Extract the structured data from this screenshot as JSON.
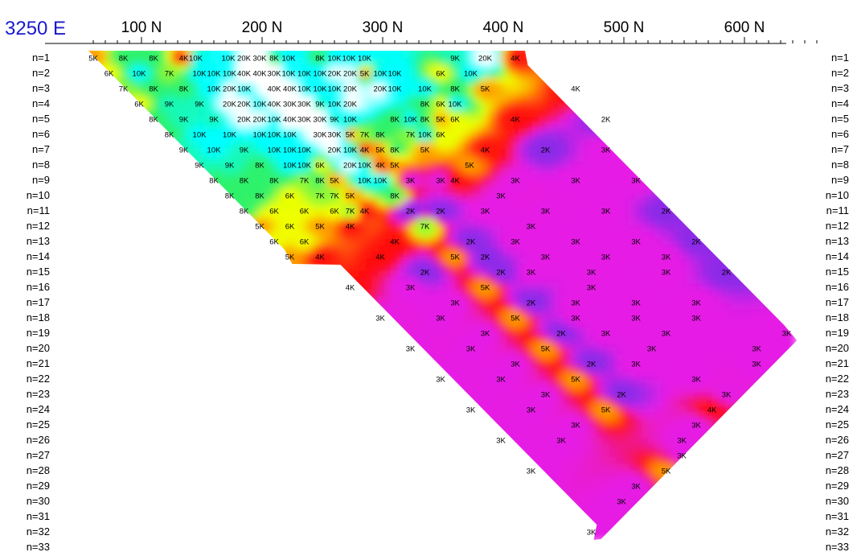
{
  "chart_data": {
    "type": "heatmap",
    "line_label": "3250 E",
    "line_label_color": "#1a1acc",
    "x_ticks": [
      "100 N",
      "200 N",
      "300 N",
      "400 N",
      "500 N",
      "600 N"
    ],
    "x_tick_values": [
      100,
      200,
      300,
      400,
      500,
      600
    ],
    "n_levels": [
      "n=1",
      "n=2",
      "n=3",
      "n=4",
      "n=5",
      "n=6",
      "n=7",
      "n=8",
      "n=9",
      "n=10",
      "n=11",
      "n=12",
      "n=13",
      "n=14",
      "n=15",
      "n=16",
      "n=17",
      "n=18",
      "n=19",
      "n=20",
      "n=21",
      "n=22",
      "n=23",
      "n=24",
      "n=25",
      "n=26",
      "n=27",
      "n=28",
      "n=29",
      "n=30",
      "n=31",
      "n=32",
      "n=33"
    ],
    "colorscale": [
      {
        "value": 2000,
        "color": "#8a2be8"
      },
      {
        "value": 3000,
        "color": "#e61ee6"
      },
      {
        "value": 4000,
        "color": "#ff1010"
      },
      {
        "value": 5000,
        "color": "#ff9a00"
      },
      {
        "value": 6000,
        "color": "#f0ff00"
      },
      {
        "value": 8000,
        "color": "#2ef26a"
      },
      {
        "value": 10000,
        "color": "#00ffff"
      },
      {
        "value": 20000,
        "color": "#ffffff"
      }
    ],
    "data_labels": [
      {
        "n": 1,
        "x": 60,
        "t": "5K"
      },
      {
        "n": 1,
        "x": 85,
        "t": "8K"
      },
      {
        "n": 1,
        "x": 110,
        "t": "8K"
      },
      {
        "n": 1,
        "x": 135,
        "t": "4K"
      },
      {
        "n": 1,
        "x": 145,
        "t": "10K"
      },
      {
        "n": 1,
        "x": 172,
        "t": "10K"
      },
      {
        "n": 1,
        "x": 185,
        "t": "20K"
      },
      {
        "n": 1,
        "x": 198,
        "t": "30K"
      },
      {
        "n": 1,
        "x": 210,
        "t": "8K"
      },
      {
        "n": 1,
        "x": 222,
        "t": "10K"
      },
      {
        "n": 1,
        "x": 248,
        "t": "8K"
      },
      {
        "n": 1,
        "x": 260,
        "t": "10K"
      },
      {
        "n": 1,
        "x": 272,
        "t": "10K"
      },
      {
        "n": 1,
        "x": 285,
        "t": "10K"
      },
      {
        "n": 1,
        "x": 360,
        "t": "9K"
      },
      {
        "n": 1,
        "x": 385,
        "t": "20K"
      },
      {
        "n": 1,
        "x": 410,
        "t": "4K"
      },
      {
        "n": 2,
        "x": 73,
        "t": "6K"
      },
      {
        "n": 2,
        "x": 98,
        "t": "10K"
      },
      {
        "n": 2,
        "x": 123,
        "t": "7K"
      },
      {
        "n": 2,
        "x": 148,
        "t": "10K"
      },
      {
        "n": 2,
        "x": 160,
        "t": "10K"
      },
      {
        "n": 2,
        "x": 173,
        "t": "10K"
      },
      {
        "n": 2,
        "x": 185,
        "t": "40K"
      },
      {
        "n": 2,
        "x": 198,
        "t": "40K"
      },
      {
        "n": 2,
        "x": 210,
        "t": "30K"
      },
      {
        "n": 2,
        "x": 222,
        "t": "10K"
      },
      {
        "n": 2,
        "x": 235,
        "t": "10K"
      },
      {
        "n": 2,
        "x": 248,
        "t": "10K"
      },
      {
        "n": 2,
        "x": 260,
        "t": "20K"
      },
      {
        "n": 2,
        "x": 273,
        "t": "20K"
      },
      {
        "n": 2,
        "x": 285,
        "t": "5K"
      },
      {
        "n": 2,
        "x": 298,
        "t": "10K"
      },
      {
        "n": 2,
        "x": 310,
        "t": "10K"
      },
      {
        "n": 2,
        "x": 348,
        "t": "6K"
      },
      {
        "n": 2,
        "x": 373,
        "t": "10K"
      },
      {
        "n": 3,
        "x": 85,
        "t": "7K"
      },
      {
        "n": 3,
        "x": 110,
        "t": "8K"
      },
      {
        "n": 3,
        "x": 135,
        "t": "8K"
      },
      {
        "n": 3,
        "x": 160,
        "t": "10K"
      },
      {
        "n": 3,
        "x": 173,
        "t": "20K"
      },
      {
        "n": 3,
        "x": 185,
        "t": "10K"
      },
      {
        "n": 3,
        "x": 210,
        "t": "40K"
      },
      {
        "n": 3,
        "x": 223,
        "t": "40K"
      },
      {
        "n": 3,
        "x": 235,
        "t": "10K"
      },
      {
        "n": 3,
        "x": 248,
        "t": "10K"
      },
      {
        "n": 3,
        "x": 260,
        "t": "10K"
      },
      {
        "n": 3,
        "x": 273,
        "t": "20K"
      },
      {
        "n": 3,
        "x": 298,
        "t": "20K"
      },
      {
        "n": 3,
        "x": 310,
        "t": "10K"
      },
      {
        "n": 3,
        "x": 335,
        "t": "10K"
      },
      {
        "n": 3,
        "x": 360,
        "t": "8K"
      },
      {
        "n": 3,
        "x": 385,
        "t": "5K"
      },
      {
        "n": 3,
        "x": 460,
        "t": "4K"
      },
      {
        "n": 4,
        "x": 98,
        "t": "6K"
      },
      {
        "n": 4,
        "x": 123,
        "t": "9K"
      },
      {
        "n": 4,
        "x": 148,
        "t": "9K"
      },
      {
        "n": 4,
        "x": 173,
        "t": "20K"
      },
      {
        "n": 4,
        "x": 185,
        "t": "20K"
      },
      {
        "n": 4,
        "x": 198,
        "t": "10K"
      },
      {
        "n": 4,
        "x": 210,
        "t": "40K"
      },
      {
        "n": 4,
        "x": 223,
        "t": "30K"
      },
      {
        "n": 4,
        "x": 235,
        "t": "30K"
      },
      {
        "n": 4,
        "x": 248,
        "t": "9K"
      },
      {
        "n": 4,
        "x": 260,
        "t": "10K"
      },
      {
        "n": 4,
        "x": 273,
        "t": "20K"
      },
      {
        "n": 4,
        "x": 335,
        "t": "8K"
      },
      {
        "n": 4,
        "x": 348,
        "t": "6K"
      },
      {
        "n": 4,
        "x": 360,
        "t": "10K"
      },
      {
        "n": 5,
        "x": 110,
        "t": "8K"
      },
      {
        "n": 5,
        "x": 135,
        "t": "9K"
      },
      {
        "n": 5,
        "x": 160,
        "t": "9K"
      },
      {
        "n": 5,
        "x": 185,
        "t": "20K"
      },
      {
        "n": 5,
        "x": 198,
        "t": "20K"
      },
      {
        "n": 5,
        "x": 210,
        "t": "10K"
      },
      {
        "n": 5,
        "x": 223,
        "t": "40K"
      },
      {
        "n": 5,
        "x": 235,
        "t": "30K"
      },
      {
        "n": 5,
        "x": 248,
        "t": "30K"
      },
      {
        "n": 5,
        "x": 260,
        "t": "9K"
      },
      {
        "n": 5,
        "x": 273,
        "t": "10K"
      },
      {
        "n": 5,
        "x": 310,
        "t": "8K"
      },
      {
        "n": 5,
        "x": 323,
        "t": "10K"
      },
      {
        "n": 5,
        "x": 335,
        "t": "8K"
      },
      {
        "n": 5,
        "x": 348,
        "t": "5K"
      },
      {
        "n": 5,
        "x": 360,
        "t": "6K"
      },
      {
        "n": 5,
        "x": 410,
        "t": "4K"
      },
      {
        "n": 5,
        "x": 485,
        "t": "2K"
      },
      {
        "n": 6,
        "x": 123,
        "t": "8K"
      },
      {
        "n": 6,
        "x": 148,
        "t": "10K"
      },
      {
        "n": 6,
        "x": 173,
        "t": "10K"
      },
      {
        "n": 6,
        "x": 198,
        "t": "10K"
      },
      {
        "n": 6,
        "x": 210,
        "t": "10K"
      },
      {
        "n": 6,
        "x": 223,
        "t": "10K"
      },
      {
        "n": 6,
        "x": 248,
        "t": "30K"
      },
      {
        "n": 6,
        "x": 260,
        "t": "30K"
      },
      {
        "n": 6,
        "x": 273,
        "t": "5K"
      },
      {
        "n": 6,
        "x": 285,
        "t": "7K"
      },
      {
        "n": 6,
        "x": 298,
        "t": "8K"
      },
      {
        "n": 6,
        "x": 323,
        "t": "7K"
      },
      {
        "n": 6,
        "x": 335,
        "t": "10K"
      },
      {
        "n": 6,
        "x": 348,
        "t": "6K"
      },
      {
        "n": 7,
        "x": 135,
        "t": "9K"
      },
      {
        "n": 7,
        "x": 160,
        "t": "10K"
      },
      {
        "n": 7,
        "x": 185,
        "t": "9K"
      },
      {
        "n": 7,
        "x": 210,
        "t": "10K"
      },
      {
        "n": 7,
        "x": 223,
        "t": "10K"
      },
      {
        "n": 7,
        "x": 235,
        "t": "10K"
      },
      {
        "n": 7,
        "x": 260,
        "t": "20K"
      },
      {
        "n": 7,
        "x": 273,
        "t": "10K"
      },
      {
        "n": 7,
        "x": 285,
        "t": "4K"
      },
      {
        "n": 7,
        "x": 298,
        "t": "5K"
      },
      {
        "n": 7,
        "x": 310,
        "t": "8K"
      },
      {
        "n": 7,
        "x": 335,
        "t": "5K"
      },
      {
        "n": 7,
        "x": 385,
        "t": "4K"
      },
      {
        "n": 7,
        "x": 435,
        "t": "2K"
      },
      {
        "n": 7,
        "x": 485,
        "t": "3K"
      },
      {
        "n": 8,
        "x": 148,
        "t": "9K"
      },
      {
        "n": 8,
        "x": 173,
        "t": "9K"
      },
      {
        "n": 8,
        "x": 198,
        "t": "8K"
      },
      {
        "n": 8,
        "x": 223,
        "t": "10K"
      },
      {
        "n": 8,
        "x": 235,
        "t": "10K"
      },
      {
        "n": 8,
        "x": 248,
        "t": "6K"
      },
      {
        "n": 8,
        "x": 273,
        "t": "20K"
      },
      {
        "n": 8,
        "x": 285,
        "t": "10K"
      },
      {
        "n": 8,
        "x": 298,
        "t": "4K"
      },
      {
        "n": 8,
        "x": 310,
        "t": "5K"
      },
      {
        "n": 8,
        "x": 372,
        "t": "5K"
      },
      {
        "n": 9,
        "x": 160,
        "t": "8K"
      },
      {
        "n": 9,
        "x": 185,
        "t": "8K"
      },
      {
        "n": 9,
        "x": 210,
        "t": "8K"
      },
      {
        "n": 9,
        "x": 235,
        "t": "7K"
      },
      {
        "n": 9,
        "x": 248,
        "t": "8K"
      },
      {
        "n": 9,
        "x": 260,
        "t": "5K"
      },
      {
        "n": 9,
        "x": 285,
        "t": "10K"
      },
      {
        "n": 9,
        "x": 298,
        "t": "10K"
      },
      {
        "n": 9,
        "x": 323,
        "t": "3K"
      },
      {
        "n": 9,
        "x": 348,
        "t": "3K"
      },
      {
        "n": 9,
        "x": 360,
        "t": "4K"
      },
      {
        "n": 9,
        "x": 410,
        "t": "3K"
      },
      {
        "n": 9,
        "x": 460,
        "t": "3K"
      },
      {
        "n": 9,
        "x": 510,
        "t": "3K"
      },
      {
        "n": 10,
        "x": 173,
        "t": "8K"
      },
      {
        "n": 10,
        "x": 198,
        "t": "8K"
      },
      {
        "n": 10,
        "x": 223,
        "t": "6K"
      },
      {
        "n": 10,
        "x": 248,
        "t": "7K"
      },
      {
        "n": 10,
        "x": 260,
        "t": "7K"
      },
      {
        "n": 10,
        "x": 273,
        "t": "5K"
      },
      {
        "n": 10,
        "x": 310,
        "t": "8K"
      },
      {
        "n": 10,
        "x": 398,
        "t": "3K"
      },
      {
        "n": 11,
        "x": 185,
        "t": "8K"
      },
      {
        "n": 11,
        "x": 210,
        "t": "6K"
      },
      {
        "n": 11,
        "x": 235,
        "t": "6K"
      },
      {
        "n": 11,
        "x": 260,
        "t": "6K"
      },
      {
        "n": 11,
        "x": 273,
        "t": "7K"
      },
      {
        "n": 11,
        "x": 285,
        "t": "4K"
      },
      {
        "n": 11,
        "x": 323,
        "t": "2K"
      },
      {
        "n": 11,
        "x": 348,
        "t": "2K"
      },
      {
        "n": 11,
        "x": 385,
        "t": "3K"
      },
      {
        "n": 11,
        "x": 435,
        "t": "3K"
      },
      {
        "n": 11,
        "x": 485,
        "t": "3K"
      },
      {
        "n": 11,
        "x": 535,
        "t": "2K"
      },
      {
        "n": 12,
        "x": 198,
        "t": "5K"
      },
      {
        "n": 12,
        "x": 223,
        "t": "6K"
      },
      {
        "n": 12,
        "x": 248,
        "t": "5K"
      },
      {
        "n": 12,
        "x": 273,
        "t": "4K"
      },
      {
        "n": 12,
        "x": 335,
        "t": "7K"
      },
      {
        "n": 12,
        "x": 423,
        "t": "3K"
      },
      {
        "n": 13,
        "x": 210,
        "t": "6K"
      },
      {
        "n": 13,
        "x": 235,
        "t": "6K"
      },
      {
        "n": 13,
        "x": 310,
        "t": "4K"
      },
      {
        "n": 13,
        "x": 373,
        "t": "2K"
      },
      {
        "n": 13,
        "x": 410,
        "t": "3K"
      },
      {
        "n": 13,
        "x": 460,
        "t": "3K"
      },
      {
        "n": 13,
        "x": 510,
        "t": "3K"
      },
      {
        "n": 13,
        "x": 560,
        "t": "2K"
      },
      {
        "n": 14,
        "x": 223,
        "t": "5K"
      },
      {
        "n": 14,
        "x": 248,
        "t": "4K"
      },
      {
        "n": 14,
        "x": 298,
        "t": "4K"
      },
      {
        "n": 14,
        "x": 360,
        "t": "5K"
      },
      {
        "n": 14,
        "x": 385,
        "t": "2K"
      },
      {
        "n": 14,
        "x": 435,
        "t": "3K"
      },
      {
        "n": 14,
        "x": 485,
        "t": "3K"
      },
      {
        "n": 14,
        "x": 535,
        "t": "3K"
      },
      {
        "n": 15,
        "x": 335,
        "t": "2K"
      },
      {
        "n": 15,
        "x": 398,
        "t": "2K"
      },
      {
        "n": 15,
        "x": 423,
        "t": "3K"
      },
      {
        "n": 15,
        "x": 473,
        "t": "3K"
      },
      {
        "n": 15,
        "x": 535,
        "t": "3K"
      },
      {
        "n": 15,
        "x": 585,
        "t": "2K"
      },
      {
        "n": 16,
        "x": 273,
        "t": "4K"
      },
      {
        "n": 16,
        "x": 323,
        "t": "3K"
      },
      {
        "n": 16,
        "x": 385,
        "t": "5K"
      },
      {
        "n": 16,
        "x": 473,
        "t": "3K"
      },
      {
        "n": 17,
        "x": 360,
        "t": "3K"
      },
      {
        "n": 17,
        "x": 423,
        "t": "2K"
      },
      {
        "n": 17,
        "x": 460,
        "t": "3K"
      },
      {
        "n": 17,
        "x": 510,
        "t": "3K"
      },
      {
        "n": 17,
        "x": 560,
        "t": "3K"
      },
      {
        "n": 18,
        "x": 298,
        "t": "3K"
      },
      {
        "n": 18,
        "x": 348,
        "t": "3K"
      },
      {
        "n": 18,
        "x": 410,
        "t": "5K"
      },
      {
        "n": 18,
        "x": 460,
        "t": "3K"
      },
      {
        "n": 18,
        "x": 510,
        "t": "3K"
      },
      {
        "n": 18,
        "x": 560,
        "t": "3K"
      },
      {
        "n": 19,
        "x": 385,
        "t": "3K"
      },
      {
        "n": 19,
        "x": 448,
        "t": "2K"
      },
      {
        "n": 19,
        "x": 485,
        "t": "3K"
      },
      {
        "n": 19,
        "x": 535,
        "t": "3K"
      },
      {
        "n": 19,
        "x": 635,
        "t": "3K"
      },
      {
        "n": 20,
        "x": 323,
        "t": "3K"
      },
      {
        "n": 20,
        "x": 373,
        "t": "3K"
      },
      {
        "n": 20,
        "x": 435,
        "t": "5K"
      },
      {
        "n": 20,
        "x": 523,
        "t": "3K"
      },
      {
        "n": 20,
        "x": 610,
        "t": "3K"
      },
      {
        "n": 21,
        "x": 410,
        "t": "3K"
      },
      {
        "n": 21,
        "x": 473,
        "t": "2K"
      },
      {
        "n": 21,
        "x": 510,
        "t": "3K"
      },
      {
        "n": 21,
        "x": 610,
        "t": "3K"
      },
      {
        "n": 22,
        "x": 348,
        "t": "3K"
      },
      {
        "n": 22,
        "x": 398,
        "t": "3K"
      },
      {
        "n": 22,
        "x": 460,
        "t": "5K"
      },
      {
        "n": 22,
        "x": 560,
        "t": "3K"
      },
      {
        "n": 23,
        "x": 435,
        "t": "3K"
      },
      {
        "n": 23,
        "x": 498,
        "t": "2K"
      },
      {
        "n": 23,
        "x": 585,
        "t": "3K"
      },
      {
        "n": 24,
        "x": 373,
        "t": "3K"
      },
      {
        "n": 24,
        "x": 423,
        "t": "3K"
      },
      {
        "n": 24,
        "x": 485,
        "t": "5K"
      },
      {
        "n": 24,
        "x": 573,
        "t": "4K"
      },
      {
        "n": 25,
        "x": 460,
        "t": "3K"
      },
      {
        "n": 25,
        "x": 560,
        "t": "3K"
      },
      {
        "n": 26,
        "x": 398,
        "t": "3K"
      },
      {
        "n": 26,
        "x": 448,
        "t": "3K"
      },
      {
        "n": 26,
        "x": 548,
        "t": "3K"
      },
      {
        "n": 27,
        "x": 548,
        "t": "3K"
      },
      {
        "n": 28,
        "x": 423,
        "t": "3K"
      },
      {
        "n": 28,
        "x": 535,
        "t": "5K"
      },
      {
        "n": 29,
        "x": 510,
        "t": "3K"
      },
      {
        "n": 30,
        "x": 498,
        "t": "3K"
      },
      {
        "n": 32,
        "x": 473,
        "t": "3K"
      }
    ]
  }
}
